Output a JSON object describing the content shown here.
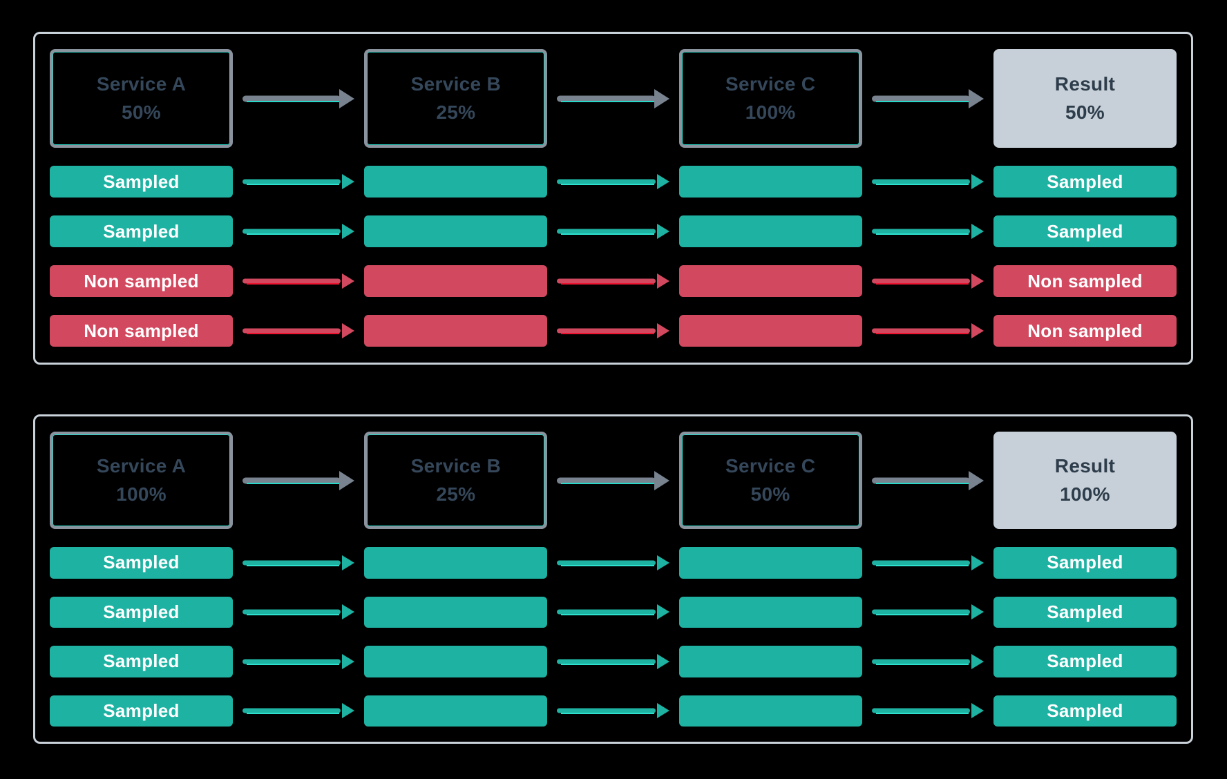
{
  "colors": {
    "background": "#000000",
    "panel_border": "#C9D1D9",
    "box_border": "#8A939E",
    "box_accent": "#29D8C8",
    "box_text": "#35475A",
    "result_fill": "#C7D0D8",
    "result_text": "#2E3D4B",
    "sampled": "#1EB2A2",
    "sampled_bright": "#2EE0CE",
    "non_sampled": "#D2495F",
    "non_sampled_bright": "#EC1430",
    "arrow_gray": "#78838F",
    "bar_text": "#FFFFFF"
  },
  "panels": [
    {
      "services": [
        {
          "name": "Service A",
          "rate": "50%"
        },
        {
          "name": "Service B",
          "rate": "25%"
        },
        {
          "name": "Service C",
          "rate": "100%"
        }
      ],
      "result": {
        "name": "Result",
        "rate": "50%"
      },
      "traces": [
        {
          "label": "Sampled",
          "status": "sampled"
        },
        {
          "label": "Sampled",
          "status": "sampled"
        },
        {
          "label": "Non sampled",
          "status": "non_sampled"
        },
        {
          "label": "Non sampled",
          "status": "non_sampled"
        }
      ]
    },
    {
      "services": [
        {
          "name": "Service A",
          "rate": "100%"
        },
        {
          "name": "Service B",
          "rate": "25%"
        },
        {
          "name": "Service C",
          "rate": "50%"
        }
      ],
      "result": {
        "name": "Result",
        "rate": "100%"
      },
      "traces": [
        {
          "label": "Sampled",
          "status": "sampled"
        },
        {
          "label": "Sampled",
          "status": "sampled"
        },
        {
          "label": "Sampled",
          "status": "sampled"
        },
        {
          "label": "Sampled",
          "status": "sampled"
        }
      ]
    }
  ]
}
